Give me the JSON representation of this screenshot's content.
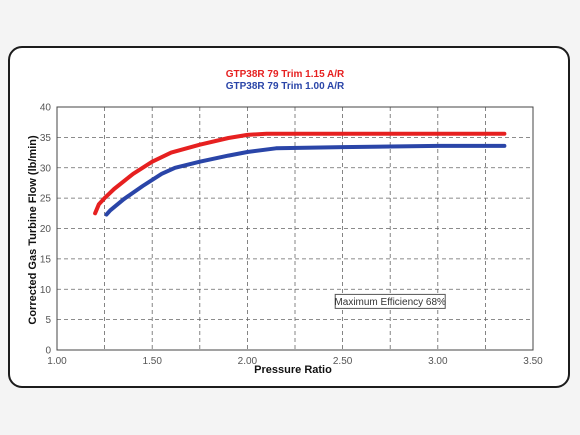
{
  "chart_data": {
    "type": "line",
    "title": "",
    "xlabel": "Pressure Ratio",
    "ylabel": "Corrected Gas Turbine Flow (lb/min)",
    "xlim": [
      1.0,
      3.5
    ],
    "ylim": [
      0,
      40
    ],
    "x_ticks": [
      "1.00",
      "1.50",
      "2.00",
      "2.50",
      "3.00",
      "3.50"
    ],
    "y_ticks": [
      "0",
      "5",
      "10",
      "15",
      "20",
      "25",
      "30",
      "35",
      "40"
    ],
    "grid": true,
    "grid_style": "dashed",
    "legend_position": "top-center",
    "series": [
      {
        "name": "GTP38R 79 Trim 1.15 A/R",
        "color": "#e62020",
        "points": [
          [
            1.2,
            22.5
          ],
          [
            1.22,
            24.0
          ],
          [
            1.25,
            25.0
          ],
          [
            1.3,
            26.5
          ],
          [
            1.4,
            29.0
          ],
          [
            1.5,
            31.0
          ],
          [
            1.6,
            32.5
          ],
          [
            1.75,
            33.8
          ],
          [
            1.9,
            34.9
          ],
          [
            2.0,
            35.4
          ],
          [
            2.1,
            35.6
          ],
          [
            2.5,
            35.6
          ],
          [
            3.0,
            35.6
          ],
          [
            3.35,
            35.6
          ]
        ]
      },
      {
        "name": "GTP38R 79 Trim 1.00 A/R",
        "color": "#2a45a8",
        "points": [
          [
            1.26,
            22.3
          ],
          [
            1.28,
            23.0
          ],
          [
            1.35,
            24.8
          ],
          [
            1.45,
            27.0
          ],
          [
            1.55,
            29.0
          ],
          [
            1.62,
            30.0
          ],
          [
            1.75,
            31.0
          ],
          [
            1.9,
            32.0
          ],
          [
            2.0,
            32.6
          ],
          [
            2.15,
            33.2
          ],
          [
            2.5,
            33.4
          ],
          [
            3.0,
            33.6
          ],
          [
            3.35,
            33.6
          ]
        ]
      }
    ],
    "annotations": [
      {
        "text": "Maximum Efficiency 68%",
        "x": 2.75,
        "y": 8.0
      }
    ]
  }
}
